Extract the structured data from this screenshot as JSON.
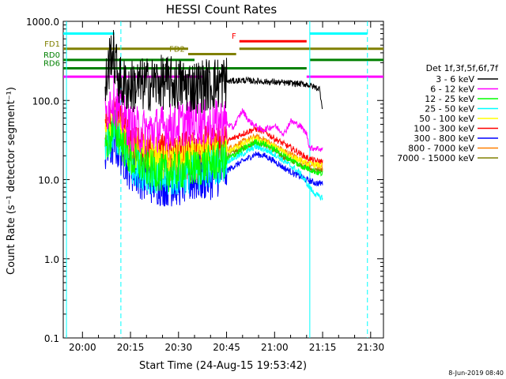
{
  "chart_data": {
    "type": "line",
    "title": "HESSI Count Rates",
    "xlabel": "Start Time (24-Aug-15 19:53:42)",
    "ylabel": "Count Rate (s⁻¹ detector segment⁻¹)",
    "yscale": "log",
    "ylim": [
      0.1,
      1000.0
    ],
    "xlim": [
      "19:54:00",
      "21:34:00"
    ],
    "x_ticks": [
      "20:00",
      "20:15",
      "20:30",
      "20:45",
      "21:00",
      "21:15",
      "21:30"
    ],
    "y_ticks": [
      "0.1",
      "1.0",
      "10.0",
      "100.0",
      "1000.0"
    ],
    "timestamp": "8-Jun-2019 08:40",
    "legend": {
      "title": "Det 1f,3f,5f,6f,7f",
      "placement": "right",
      "entries": [
        {
          "label": "3 - 6 keV",
          "color": "#000000"
        },
        {
          "label": "6 - 12 keV",
          "color": "#ff00ff"
        },
        {
          "label": "12 - 25 keV",
          "color": "#00ff00"
        },
        {
          "label": "25 - 50 keV",
          "color": "#00ffff"
        },
        {
          "label": "50 - 100 keV",
          "color": "#ffff00"
        },
        {
          "label": "100 - 300 keV",
          "color": "#ff0000"
        },
        {
          "label": "300 - 800 keV",
          "color": "#0000ff"
        },
        {
          "label": "800 - 7000 keV",
          "color": "#ff8000"
        },
        {
          "label": "7000 - 15000 keV",
          "color": "#808000"
        }
      ]
    },
    "series": [
      {
        "name": "3 - 6 keV",
        "color": "#000000",
        "x": [
          "20:07",
          "20:09",
          "20:12",
          "20:15",
          "20:20",
          "20:25",
          "20:30",
          "20:35",
          "20:40",
          "20:44",
          "20:46",
          "20:50",
          "20:55",
          "21:00",
          "21:05",
          "21:10",
          "21:12",
          "21:13",
          "21:14",
          "21:15"
        ],
        "y": [
          130,
          450,
          160,
          150,
          160,
          170,
          160,
          150,
          160,
          170,
          175,
          180,
          175,
          170,
          165,
          160,
          150,
          145,
          140,
          80
        ],
        "noise": 0.35,
        "noise_until": "20:45"
      },
      {
        "name": "6 - 12 keV",
        "color": "#ff00ff",
        "x": [
          "20:07",
          "20:09",
          "20:12",
          "20:15",
          "20:20",
          "20:25",
          "20:30",
          "20:35",
          "20:40",
          "20:44",
          "20:47",
          "20:50",
          "20:52",
          "20:56",
          "21:00",
          "21:03",
          "21:05",
          "21:08",
          "21:10",
          "21:11",
          "21:13",
          "21:15"
        ],
        "y": [
          60,
          110,
          70,
          45,
          40,
          45,
          50,
          55,
          50,
          55,
          45,
          75,
          55,
          42,
          48,
          38,
          55,
          48,
          38,
          25,
          25,
          24
        ],
        "noise": 0.3,
        "noise_until": "20:45"
      },
      {
        "name": "12 - 25 keV",
        "color": "#00ff00",
        "x": [
          "20:07",
          "20:10",
          "20:15",
          "20:20",
          "20:25",
          "20:30",
          "20:35",
          "20:40",
          "20:45",
          "20:50",
          "20:54",
          "20:57",
          "21:00",
          "21:03",
          "21:06",
          "21:08",
          "21:10",
          "21:12",
          "21:14",
          "21:15"
        ],
        "y": [
          25,
          45,
          18,
          14,
          12,
          13,
          14,
          16,
          18,
          24,
          30,
          28,
          24,
          20,
          17,
          15,
          14,
          13,
          12,
          12
        ],
        "noise": 0.25,
        "noise_until": "20:45"
      },
      {
        "name": "25 - 50 keV",
        "color": "#00ffff",
        "x": [
          "20:07",
          "20:10",
          "20:15",
          "20:20",
          "20:25",
          "20:30",
          "20:35",
          "20:40",
          "20:45",
          "20:50",
          "20:54",
          "20:57",
          "21:00",
          "21:03",
          "21:06",
          "21:08",
          "21:10",
          "21:12",
          "21:14",
          "21:15"
        ],
        "y": [
          22,
          40,
          16,
          12,
          10,
          11,
          12,
          14,
          17,
          21,
          26,
          24,
          21,
          17,
          14,
          12,
          9,
          7,
          6,
          6
        ],
        "noise": 0.25,
        "noise_until": "20:45"
      },
      {
        "name": "50 - 100 keV",
        "color": "#ffff00",
        "x": [
          "20:07",
          "20:10",
          "20:15",
          "20:20",
          "20:25",
          "20:30",
          "20:35",
          "20:40",
          "20:45",
          "20:50",
          "20:54",
          "20:57",
          "21:00",
          "21:03",
          "21:06",
          "21:10",
          "21:15"
        ],
        "y": [
          30,
          55,
          22,
          18,
          16,
          17,
          18,
          20,
          22,
          28,
          33,
          30,
          26,
          22,
          19,
          16,
          15
        ],
        "noise": 0.25,
        "noise_until": "20:45"
      },
      {
        "name": "100 - 300 keV",
        "color": "#ff0000",
        "x": [
          "20:07",
          "20:10",
          "20:15",
          "20:20",
          "20:25",
          "20:30",
          "20:35",
          "20:40",
          "20:45",
          "20:50",
          "20:54",
          "20:57",
          "21:00",
          "21:03",
          "21:06",
          "21:10",
          "21:13",
          "21:15"
        ],
        "y": [
          40,
          70,
          30,
          24,
          22,
          24,
          26,
          28,
          30,
          38,
          44,
          40,
          33,
          28,
          24,
          19,
          17,
          17
        ],
        "noise": 0.25,
        "noise_until": "20:45"
      },
      {
        "name": "300 - 800 keV",
        "color": "#0000ff",
        "x": [
          "20:07",
          "20:10",
          "20:15",
          "20:20",
          "20:25",
          "20:30",
          "20:35",
          "20:40",
          "20:45",
          "20:50",
          "20:54",
          "20:57",
          "21:00",
          "21:03",
          "21:06",
          "21:10",
          "21:13",
          "21:15"
        ],
        "y": [
          20,
          30,
          14,
          10,
          9,
          9,
          10,
          11,
          13,
          17,
          21,
          20,
          17,
          14,
          12,
          10,
          9,
          9
        ],
        "noise": 0.3,
        "noise_until": "20:45"
      },
      {
        "name": "800 - 7000 keV",
        "color": "#ff8000",
        "x": [
          "20:07",
          "20:10",
          "20:15",
          "20:20",
          "20:25",
          "20:30",
          "20:35",
          "20:40",
          "20:45",
          "20:50",
          "20:54",
          "20:57",
          "21:00",
          "21:03",
          "21:06",
          "21:10",
          "21:13",
          "21:15"
        ],
        "y": [
          35,
          60,
          24,
          20,
          18,
          19,
          20,
          22,
          24,
          30,
          35,
          32,
          27,
          23,
          20,
          16,
          15,
          14
        ],
        "noise": 0.3,
        "noise_until": "20:45"
      },
      {
        "name": "7000 - 15000 keV",
        "color": "#808000",
        "x": [
          "20:07",
          "20:10",
          "20:15",
          "20:20",
          "20:25",
          "20:30",
          "20:35",
          "20:40",
          "20:45",
          "20:50",
          "20:54",
          "20:57",
          "21:00",
          "21:03",
          "21:06",
          "21:10",
          "21:13",
          "21:15"
        ],
        "y": [
          28,
          50,
          20,
          16,
          15,
          16,
          17,
          19,
          20,
          25,
          30,
          28,
          23,
          19,
          17,
          14,
          13,
          13
        ],
        "noise": 0.25,
        "noise_until": "20:45"
      }
    ],
    "vertical_lines": [
      {
        "x": "19:55",
        "color": "#00ffff",
        "style": "solid"
      },
      {
        "x": "20:12",
        "color": "#00ffff",
        "style": "dashed"
      },
      {
        "x": "21:11",
        "color": "#00ffff",
        "style": "solid"
      },
      {
        "x": "21:29",
        "color": "#00ffff",
        "style": "dashed"
      }
    ],
    "flag_bars": [
      {
        "label": "",
        "color": "#00ffff",
        "y": 700,
        "segments": [
          [
            "19:54",
            "20:10"
          ],
          [
            "21:11",
            "21:29"
          ]
        ]
      },
      {
        "label": "F",
        "color": "#ff0000",
        "y": 560,
        "segments": [
          [
            "20:49",
            "21:10"
          ]
        ]
      },
      {
        "label": "FD1",
        "color": "#808000",
        "y": 450,
        "segments": [
          [
            "19:54",
            "20:33"
          ],
          [
            "20:49",
            "21:34"
          ]
        ]
      },
      {
        "label": "FD2",
        "color": "#808000",
        "y": 385,
        "segments": [
          [
            "20:33",
            "20:48"
          ]
        ]
      },
      {
        "label": "RD0",
        "color": "#008000",
        "y": 325,
        "segments": [
          [
            "19:54",
            "20:35"
          ],
          [
            "21:11",
            "21:34"
          ]
        ]
      },
      {
        "label": "RD6",
        "color": "#008000",
        "y": 255,
        "segments": [
          [
            "19:54",
            "21:10"
          ]
        ]
      },
      {
        "label": "",
        "color": "#ff00ff",
        "y": 200,
        "segments": [
          [
            "19:54",
            "20:38"
          ],
          [
            "21:10",
            "21:34"
          ]
        ]
      }
    ]
  }
}
